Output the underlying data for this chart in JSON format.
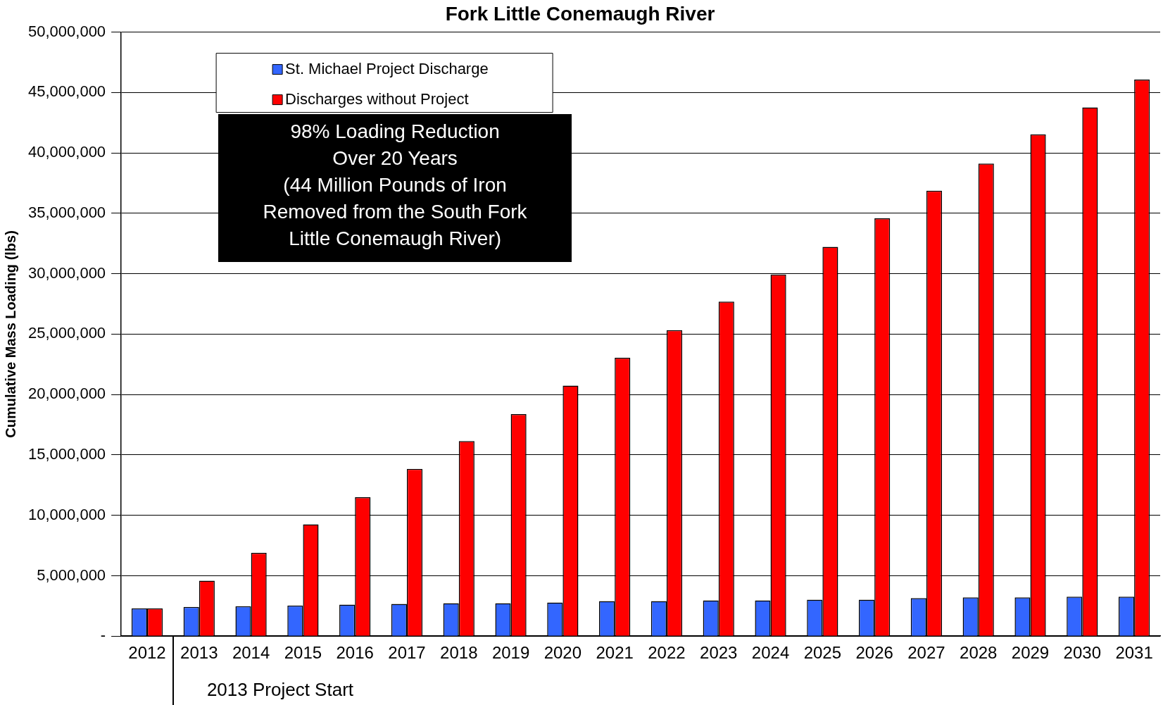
{
  "chart_data": {
    "type": "bar",
    "title": "Fork Little Conemaugh River",
    "ylabel": "Cumulative Mass Loading (lbs)",
    "categories": [
      "2012",
      "2013",
      "2014",
      "2015",
      "2016",
      "2017",
      "2018",
      "2019",
      "2020",
      "2021",
      "2022",
      "2023",
      "2024",
      "2025",
      "2026",
      "2027",
      "2028",
      "2029",
      "2030",
      "2031"
    ],
    "series": [
      {
        "name": "St. Michael Project Discharge",
        "color": "#3366ff",
        "values": [
          2300000,
          2420000,
          2480000,
          2540000,
          2600000,
          2660000,
          2720000,
          2720000,
          2780000,
          2900000,
          2900000,
          2960000,
          2960000,
          3020000,
          3020000,
          3140000,
          3200000,
          3200000,
          3260000,
          3260000
        ]
      },
      {
        "name": "Discharges without Project",
        "color": "#ff0000",
        "values": [
          2300000,
          4590000,
          6890000,
          9250000,
          11490000,
          13850000,
          16140000,
          18380000,
          20740000,
          23040000,
          25330000,
          27690000,
          29930000,
          32220000,
          34580000,
          36880000,
          39120000,
          41540000,
          43770000,
          46070000
        ]
      }
    ],
    "ylim": [
      0,
      50000000
    ],
    "yticks": [
      {
        "value": 0,
        "label": "-"
      },
      {
        "value": 5000000,
        "label": "5,000,000"
      },
      {
        "value": 10000000,
        "label": "10,000,000"
      },
      {
        "value": 15000000,
        "label": "15,000,000"
      },
      {
        "value": 20000000,
        "label": "20,000,000"
      },
      {
        "value": 25000000,
        "label": "25,000,000"
      },
      {
        "value": 30000000,
        "label": "30,000,000"
      },
      {
        "value": 35000000,
        "label": "35,000,000"
      },
      {
        "value": 40000000,
        "label": "40,000,000"
      },
      {
        "value": 45000000,
        "label": "45,000,000"
      },
      {
        "value": 50000000,
        "label": "50,000,000"
      }
    ],
    "grid": "y",
    "legend": "top left",
    "annotations": [
      "2013 Project Start",
      "98% Loading Reduction\nOver 20 Years\n(44 Million Pounds of Iron\nRemoved from the South Fork\nLittle Conemaugh River)"
    ]
  }
}
